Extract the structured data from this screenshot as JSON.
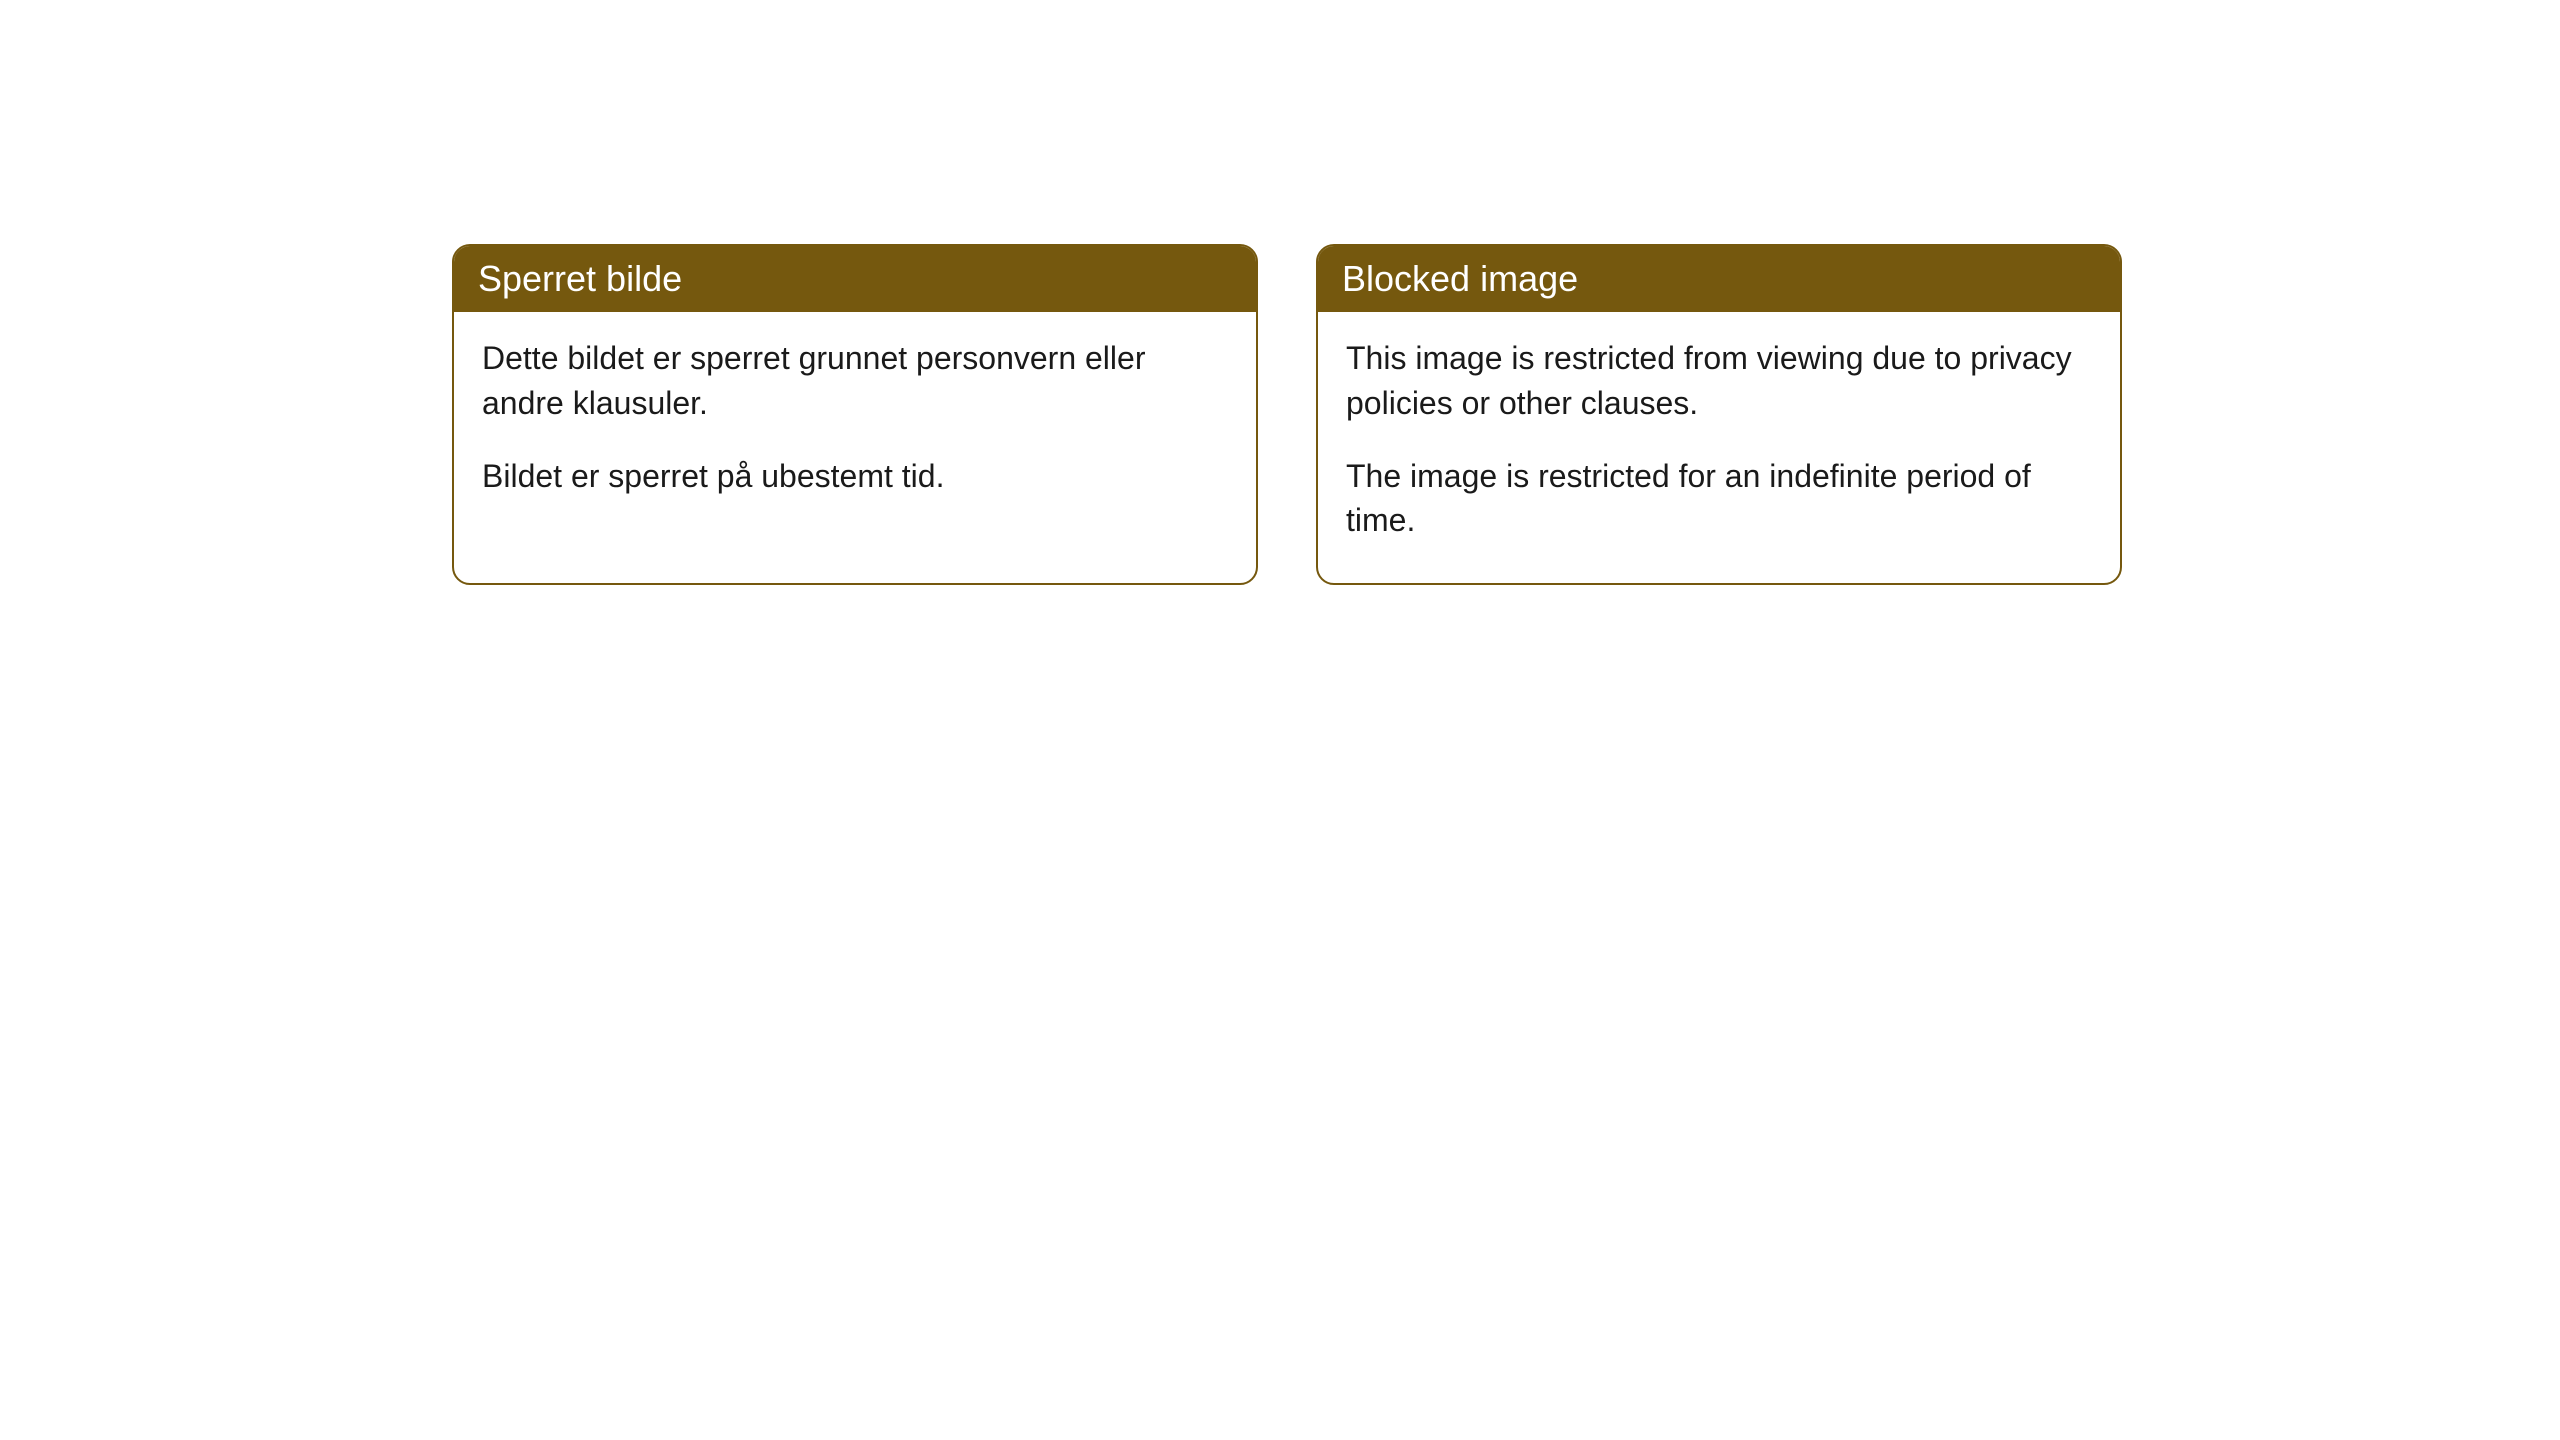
{
  "cards": [
    {
      "header": "Sperret bilde",
      "paragraph1": "Dette bildet er sperret grunnet personvern eller andre klausuler.",
      "paragraph2": "Bildet er sperret på ubestemt tid."
    },
    {
      "header": "Blocked image",
      "paragraph1": "This image is restricted from viewing due to privacy policies or other clauses.",
      "paragraph2": "The image is restricted for an indefinite period of time."
    }
  ],
  "styling": {
    "header_bg_color": "#75580e",
    "header_text_color": "#ffffff",
    "border_color": "#75580e",
    "body_bg_color": "#ffffff",
    "body_text_color": "#1a1a1a",
    "border_radius": 18,
    "header_fontsize": 36,
    "body_fontsize": 32
  }
}
